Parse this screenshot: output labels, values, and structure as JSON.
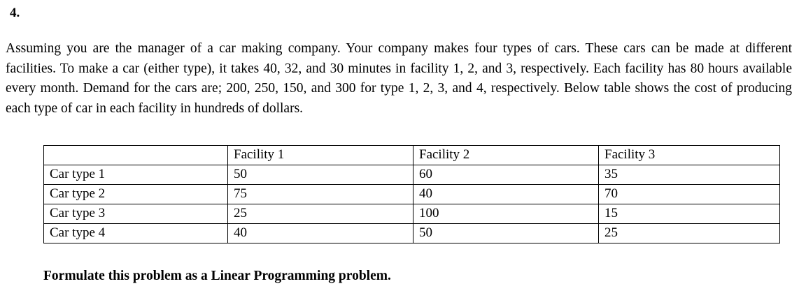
{
  "problem": {
    "number": "4.",
    "statement": "Assuming you are the manager of a car making company. Your company makes four types of cars. These cars can be made at different facilities. To make a car (either type), it takes 40, 32, and 30 minutes in facility 1, 2, and 3, respectively. Each facility has 80 hours available every month. Demand for the cars are; 200, 250, 150, and 300 for type 1, 2, 3, and 4, respectively. Below table shows the cost of producing each type of car in each facility in hundreds of dollars.",
    "instruction": "Formulate this problem as a Linear Programming problem."
  },
  "table": {
    "headers": [
      "",
      "Facility 1",
      "Facility 2",
      "Facility 3"
    ],
    "rows": [
      {
        "label": "Car type 1",
        "values": [
          "50",
          "60",
          "35"
        ]
      },
      {
        "label": "Car type 2",
        "values": [
          "75",
          "40",
          "70"
        ]
      },
      {
        "label": "Car type 3",
        "values": [
          "25",
          "100",
          "15"
        ]
      },
      {
        "label": "Car type 4",
        "values": [
          "40",
          "50",
          "25"
        ]
      }
    ]
  }
}
